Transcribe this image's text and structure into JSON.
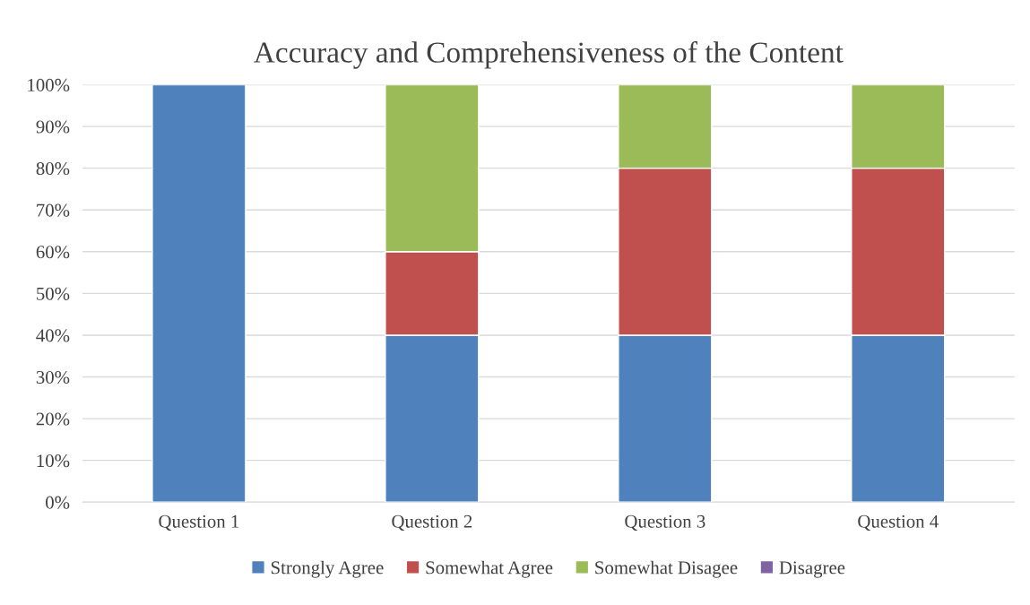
{
  "chart_data": {
    "type": "bar",
    "title": "Accuracy and Comprehensiveness of the Content",
    "categories": [
      "Question 1",
      "Question 2",
      "Question 3",
      "Question 4"
    ],
    "stacked": true,
    "series": [
      {
        "name": "Strongly Agree",
        "color": "#4f81bd",
        "values": [
          100,
          40,
          40,
          40
        ]
      },
      {
        "name": "Somewhat Agree",
        "color": "#c0504d",
        "values": [
          null,
          20,
          40,
          40
        ]
      },
      {
        "name": "Somewhat Disagee",
        "color": "#9bbb59",
        "values": [
          null,
          40,
          20,
          20
        ]
      },
      {
        "name": "Disagree",
        "color": "#8064a2",
        "values": [
          null,
          null,
          null,
          null
        ]
      }
    ],
    "ylim": [
      0,
      100
    ],
    "yticks": [
      {
        "value": 0,
        "label": "0%"
      },
      {
        "value": 10,
        "label": "10%"
      },
      {
        "value": 20,
        "label": "20%"
      },
      {
        "value": 30,
        "label": "30%"
      },
      {
        "value": 40,
        "label": "40%"
      },
      {
        "value": 50,
        "label": "50%"
      },
      {
        "value": 60,
        "label": "60%"
      },
      {
        "value": 70,
        "label": "70%"
      },
      {
        "value": 80,
        "label": "80%"
      },
      {
        "value": 90,
        "label": "90%"
      },
      {
        "value": 100,
        "label": "100%"
      }
    ],
    "grid": "y",
    "legend": "bottom"
  }
}
